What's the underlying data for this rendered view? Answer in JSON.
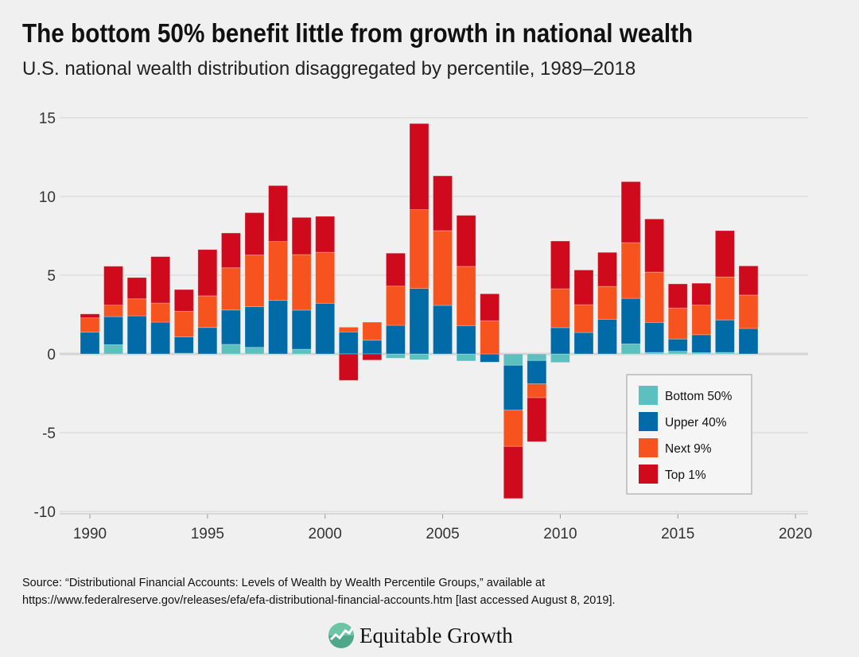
{
  "title": "The bottom 50% benefit little from growth in national wealth",
  "subtitle": "U.S. national wealth distribution disaggregated by percentile, 1989–2018",
  "source_line1": "Source: “Distributional Financial Accounts: Levels of Wealth by Wealth Percentile Groups,” available at",
  "source_line2": "https://www.federalreserve.gov/releases/efa/efa-distributional-financial-accounts.htm [last accessed August 8, 2019].",
  "logo_text": "Equitable Growth",
  "chart_data": {
    "type": "bar",
    "stacked": true,
    "title": "",
    "xlabel": "",
    "ylabel": "",
    "xlim": [
      1989,
      2021
    ],
    "ylim": [
      -10,
      15
    ],
    "x_ticks": [
      1990,
      1995,
      2000,
      2005,
      2010,
      2015,
      2020
    ],
    "y_ticks": [
      15,
      10,
      5,
      0,
      -5,
      -10
    ],
    "grid": "horizontal",
    "legend_position": "bottom-right",
    "categories": [
      1990,
      1991,
      1992,
      1993,
      1994,
      1995,
      1996,
      1997,
      1998,
      1999,
      2000,
      2001,
      2002,
      2003,
      2004,
      2005,
      2006,
      2007,
      2008,
      2009,
      2010,
      2011,
      2012,
      2013,
      2014,
      2015,
      2016,
      2017,
      2018
    ],
    "series": [
      {
        "name": "Bottom 50%",
        "color": "#5bc0be",
        "values": [
          0,
          0.59,
          0,
          0,
          0.05,
          0,
          0.61,
          0.42,
          0,
          0.3,
          0,
          0,
          0,
          -0.27,
          -0.37,
          0,
          -0.45,
          0,
          -0.72,
          -0.42,
          -0.54,
          0,
          0,
          0.64,
          0.1,
          0.17,
          0.08,
          0.1,
          0
        ]
      },
      {
        "name": "Upper 40%",
        "color": "#006ba6",
        "values": [
          1.38,
          1.78,
          2.42,
          2.02,
          1.03,
          1.68,
          2.18,
          2.58,
          3.4,
          2.48,
          3.22,
          1.4,
          0.87,
          1.82,
          4.16,
          3.08,
          1.8,
          -0.52,
          -2.85,
          -1.48,
          1.67,
          1.36,
          2.2,
          2.89,
          1.9,
          0.78,
          1.14,
          2.06,
          1.62
        ]
      },
      {
        "name": "Next 9%",
        "color": "#f7531e",
        "values": [
          0.91,
          0.73,
          1.08,
          1.21,
          1.63,
          2.01,
          2.68,
          3.28,
          3.74,
          3.53,
          3.24,
          0.3,
          1.15,
          2.49,
          5.0,
          4.75,
          3.76,
          2.11,
          -2.3,
          -0.88,
          2.47,
          1.77,
          2.09,
          3.54,
          3.2,
          1.97,
          1.89,
          2.73,
          2.12
        ]
      },
      {
        "name": "Top 1%",
        "color": "#cf0a1d",
        "values": [
          0.25,
          2.47,
          1.35,
          2.95,
          1.38,
          2.94,
          2.21,
          2.69,
          3.55,
          2.36,
          2.28,
          -1.68,
          -0.39,
          2.09,
          5.47,
          3.48,
          3.24,
          1.71,
          -3.31,
          -2.79,
          3.03,
          2.2,
          2.16,
          3.87,
          3.37,
          1.53,
          1.38,
          2.94,
          1.85
        ]
      }
    ]
  }
}
